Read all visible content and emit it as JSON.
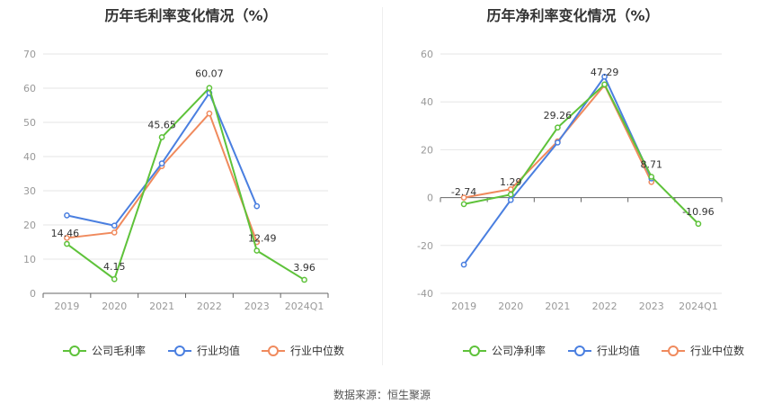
{
  "chart_data": [
    {
      "type": "line",
      "title": "历年毛利率变化情况（%）",
      "categories": [
        "2019",
        "2020",
        "2021",
        "2022",
        "2023",
        "2024Q1"
      ],
      "ylim": [
        0,
        70
      ],
      "yticks": [
        0,
        10,
        20,
        30,
        40,
        50,
        60,
        70
      ],
      "grid": true,
      "legend_position": "bottom",
      "series": [
        {
          "name": "公司毛利率",
          "color": "#5ec23a",
          "values": [
            14.46,
            4.15,
            45.65,
            60.07,
            12.49,
            3.96
          ],
          "labels": [
            "14.46",
            "4.15",
            "45.65",
            "60.07",
            "12.49",
            "3.96"
          ]
        },
        {
          "name": "行业均值",
          "color": "#4a7fe0",
          "values": [
            22.8,
            19.8,
            38.0,
            58.6,
            25.5,
            null
          ]
        },
        {
          "name": "行业中位数",
          "color": "#f08a5d",
          "values": [
            16.2,
            17.8,
            37.2,
            52.6,
            15.0,
            null
          ]
        }
      ]
    },
    {
      "type": "line",
      "title": "历年净利率变化情况（%）",
      "categories": [
        "2019",
        "2020",
        "2021",
        "2022",
        "2023",
        "2024Q1"
      ],
      "ylim": [
        -40,
        60
      ],
      "yticks": [
        -40,
        -20,
        0,
        20,
        40,
        60
      ],
      "grid": true,
      "legend_position": "bottom",
      "series": [
        {
          "name": "公司净利率",
          "color": "#5ec23a",
          "values": [
            -2.74,
            1.29,
            29.26,
            47.29,
            8.71,
            -10.96
          ],
          "labels": [
            "-2.74",
            "1.29",
            "29.26",
            "47.29",
            "8.71",
            "-10.96"
          ]
        },
        {
          "name": "行业均值",
          "color": "#4a7fe0",
          "values": [
            -28.0,
            -1.0,
            23.0,
            50.5,
            8.0,
            null
          ]
        },
        {
          "name": "行业中位数",
          "color": "#f08a5d",
          "values": [
            0.0,
            3.5,
            23.5,
            47.0,
            6.5,
            null
          ]
        }
      ]
    }
  ],
  "footer": {
    "source": "数据来源：恒生聚源"
  }
}
